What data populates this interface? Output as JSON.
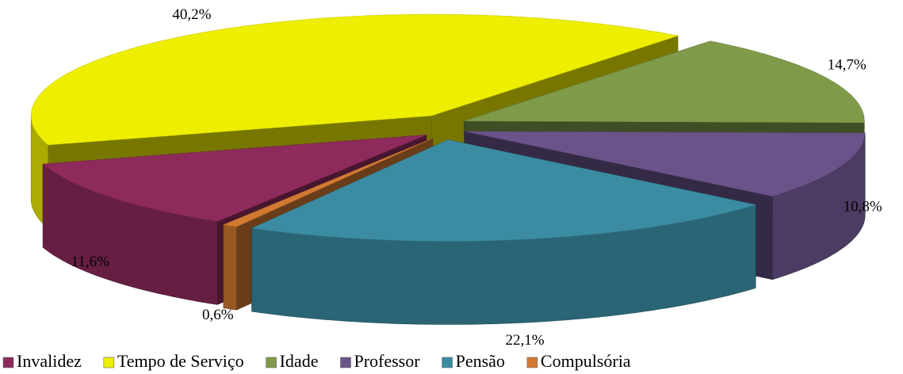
{
  "chart_data": {
    "type": "pie3d",
    "categories": [
      "Invalidez",
      "Tempo de Serviço",
      "Idade",
      "Professor",
      "Pensão",
      "Compulsória"
    ],
    "values": [
      11.6,
      40.2,
      14.7,
      10.8,
      22.1,
      0.6
    ],
    "value_labels": [
      "11,6%",
      "40,2%",
      "14,7%",
      "10,8%",
      "22,1%",
      "0,6%"
    ],
    "colors": [
      "#8e2b5c",
      "#eeee00",
      "#7f9b4a",
      "#6a5389",
      "#3b8ca2",
      "#d27a32"
    ],
    "legend": "bottom"
  }
}
